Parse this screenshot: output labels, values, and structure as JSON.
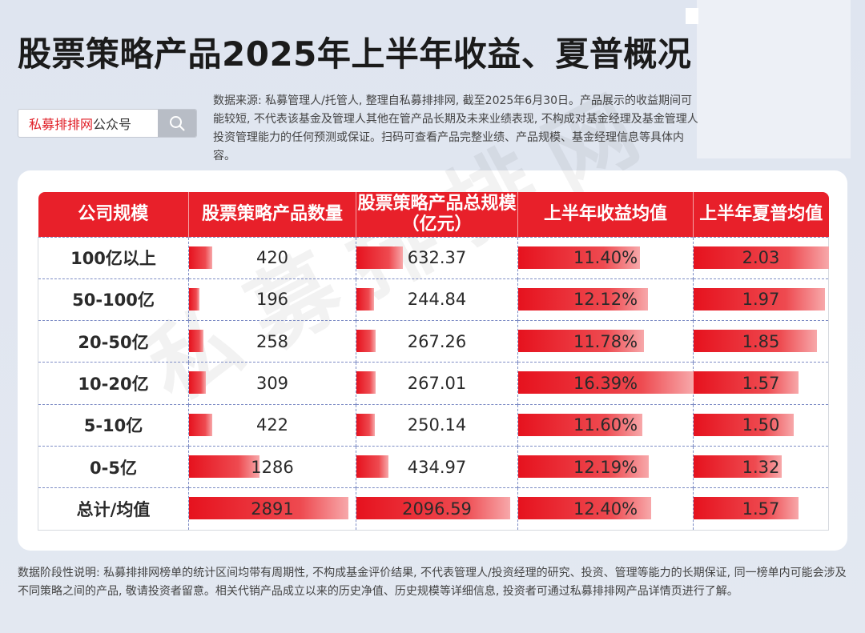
{
  "title": "股票策略产品2025年上半年收益、夏普概况",
  "search": {
    "brand": "私募排排网",
    "suffix": "公众号"
  },
  "source": "数据来源: 私募管理人/托管人, 整理自私募排排网, 截至2025年6月30日。产品展示的收益期间可能较短, 不代表该基金及管理人其他在管产品长期及未来业绩表现, 不构成对基金经理及基金管理人投资管理能力的任何预测或保证。扫码可查看产品完整业绩、产品规模、基金经理信息等具体内容。",
  "watermark": "私募排排网",
  "note": "数据阶段性说明: 私募排排网榜单的统计区间均带有周期性, 不构成基金评价结果, 不代表管理人/投资经理的研究、投资、管理等能力的长期保证, 同一榜单内可能会涉及不同策略之间的产品, 敬请投资者留意。相关代销产品成立以来的历史净值、历史规模等详细信息, 投资者可通过私募排排网产品详情页进行了解。",
  "colors": {
    "header": "#e8202a",
    "bar": "#e6121e"
  },
  "chart_data": {
    "type": "table",
    "columns": [
      "公司规模",
      "股票策略产品数量",
      "股票策略产品总规模（亿元）",
      "上半年收益均值",
      "上半年夏普均值"
    ],
    "rows": [
      {
        "label": "100亿以上",
        "count": 420,
        "count_text": "420",
        "scale": 632.37,
        "scale_text": "632.37",
        "return": 11.4,
        "return_text": "11.40%",
        "sharpe": 2.03,
        "sharpe_text": "2.03"
      },
      {
        "label": "50-100亿",
        "count": 196,
        "count_text": "196",
        "scale": 244.84,
        "scale_text": "244.84",
        "return": 12.12,
        "return_text": "12.12%",
        "sharpe": 1.97,
        "sharpe_text": "1.97"
      },
      {
        "label": "20-50亿",
        "count": 258,
        "count_text": "258",
        "scale": 267.26,
        "scale_text": "267.26",
        "return": 11.78,
        "return_text": "11.78%",
        "sharpe": 1.85,
        "sharpe_text": "1.85"
      },
      {
        "label": "10-20亿",
        "count": 309,
        "count_text": "309",
        "scale": 267.01,
        "scale_text": "267.01",
        "return": 16.39,
        "return_text": "16.39%",
        "sharpe": 1.57,
        "sharpe_text": "1.57"
      },
      {
        "label": "5-10亿",
        "count": 422,
        "count_text": "422",
        "scale": 250.14,
        "scale_text": "250.14",
        "return": 11.6,
        "return_text": "11.60%",
        "sharpe": 1.5,
        "sharpe_text": "1.50"
      },
      {
        "label": "0-5亿",
        "count": 1286,
        "count_text": "1286",
        "scale": 434.97,
        "scale_text": "434.97",
        "return": 12.19,
        "return_text": "12.19%",
        "sharpe": 1.32,
        "sharpe_text": "1.32"
      },
      {
        "label": "总计/均值",
        "count": 2891,
        "count_text": "2891",
        "scale": 2096.59,
        "scale_text": "2096.59",
        "return": 12.4,
        "return_text": "12.40%",
        "sharpe": 1.57,
        "sharpe_text": "1.57"
      }
    ]
  }
}
